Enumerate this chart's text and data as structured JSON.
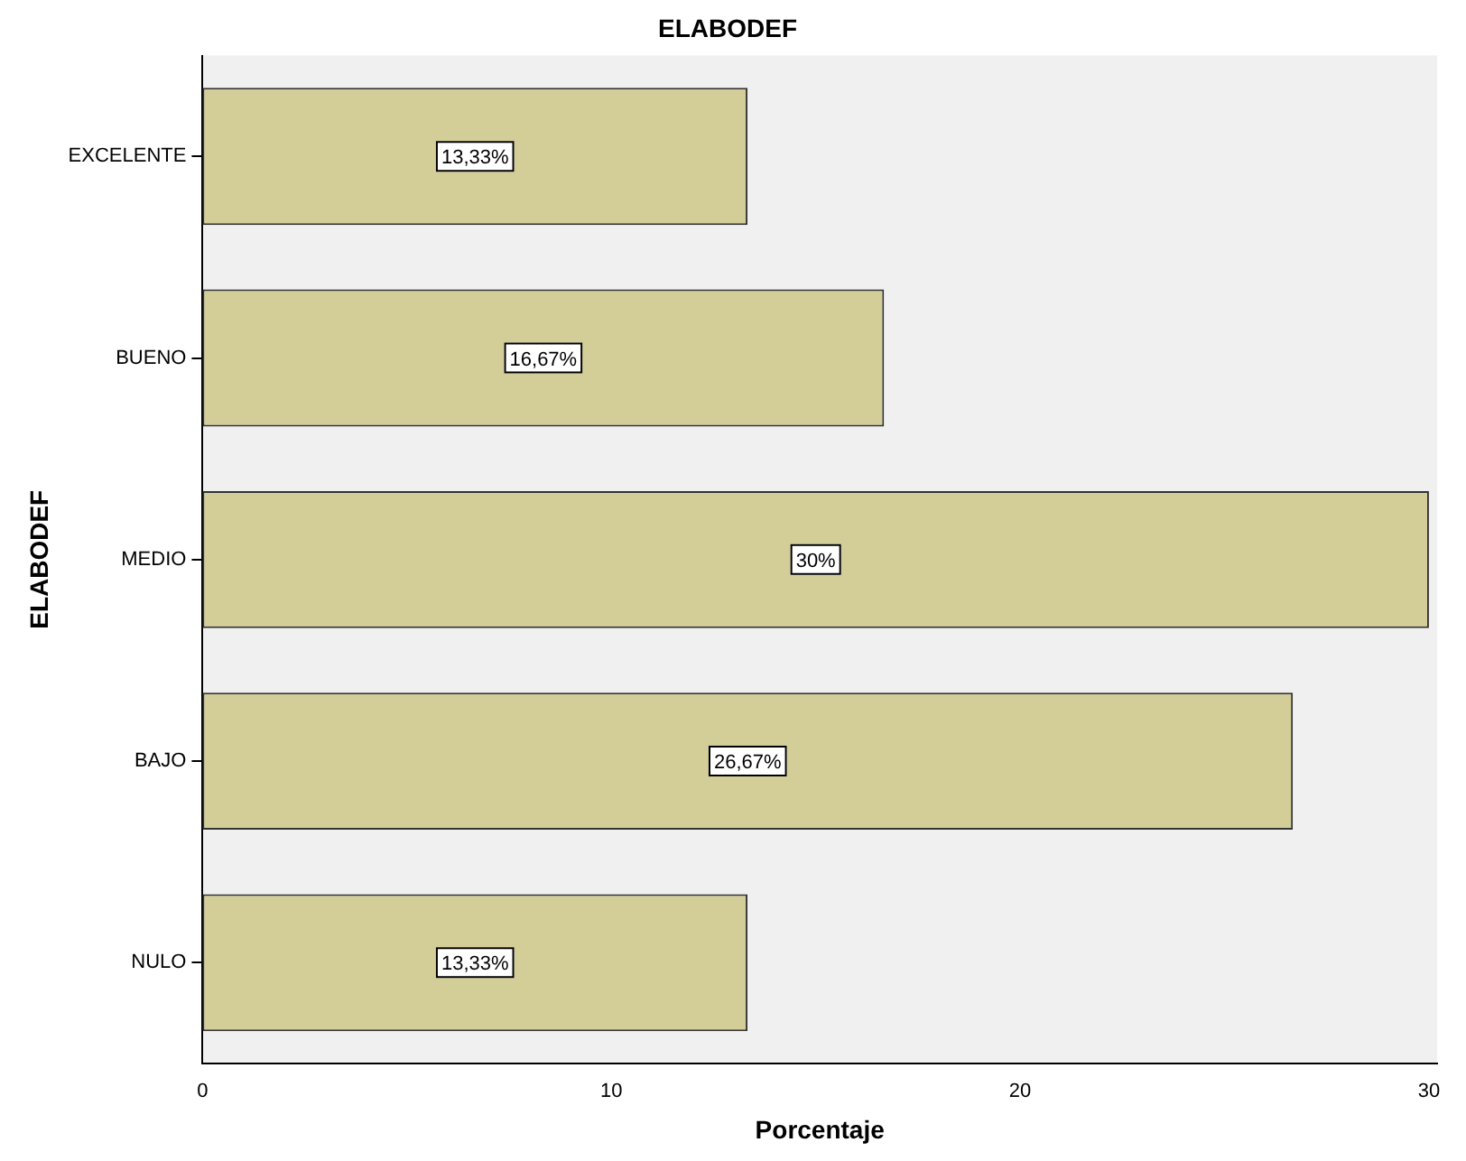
{
  "chart_data": {
    "type": "bar",
    "orientation": "horizontal",
    "title": "ELABODEF",
    "xlabel": "Porcentaje",
    "ylabel": "ELABODEF",
    "categories": [
      "EXCELENTE",
      "BUENO",
      "MEDIO",
      "BAJO",
      "NULO"
    ],
    "values": [
      13.33,
      16.67,
      30,
      26.67,
      13.33
    ],
    "value_labels": [
      "13,33%",
      "16,67%",
      "30%",
      "26,67%",
      "13,33%"
    ],
    "color": "#d3ce97",
    "xlim": [
      0,
      30.2
    ],
    "xticks": [
      0,
      10,
      20,
      30
    ],
    "grid": false,
    "legend": false
  }
}
